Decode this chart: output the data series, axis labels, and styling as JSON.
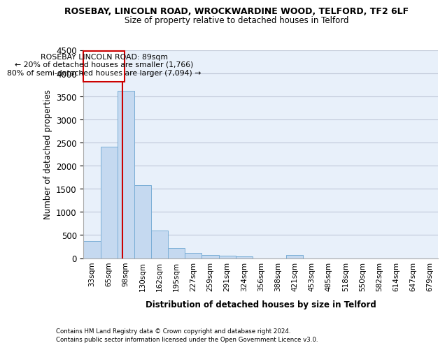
{
  "title_line1": "ROSEBAY, LINCOLN ROAD, WROCKWARDINE WOOD, TELFORD, TF2 6LF",
  "title_line2": "Size of property relative to detached houses in Telford",
  "xlabel": "Distribution of detached houses by size in Telford",
  "ylabel": "Number of detached properties",
  "categories": [
    "33sqm",
    "65sqm",
    "98sqm",
    "130sqm",
    "162sqm",
    "195sqm",
    "227sqm",
    "259sqm",
    "291sqm",
    "324sqm",
    "356sqm",
    "388sqm",
    "421sqm",
    "453sqm",
    "485sqm",
    "518sqm",
    "550sqm",
    "582sqm",
    "614sqm",
    "647sqm",
    "679sqm"
  ],
  "values": [
    370,
    2420,
    3620,
    1580,
    590,
    225,
    110,
    75,
    55,
    40,
    0,
    0,
    65,
    0,
    0,
    0,
    0,
    0,
    0,
    0,
    0
  ],
  "bar_color": "#c5d9f0",
  "bar_edge_color": "#7aaed6",
  "ylim": [
    0,
    4500
  ],
  "yticks": [
    0,
    500,
    1000,
    1500,
    2000,
    2500,
    3000,
    3500,
    4000,
    4500
  ],
  "property_line_x": 1.82,
  "annotation_text_line1": "ROSEBAY LINCOLN ROAD: 89sqm",
  "annotation_text_line2": "← 20% of detached houses are smaller (1,766)",
  "annotation_text_line3": "80% of semi-detached houses are larger (7,094) →",
  "annotation_box_color": "#cc0000",
  "footer_line1": "Contains HM Land Registry data © Crown copyright and database right 2024.",
  "footer_line2": "Contains public sector information licensed under the Open Government Licence v3.0.",
  "background_color": "#ffffff",
  "plot_bg_color": "#e8f0fa",
  "grid_color": "#c0c8d8"
}
